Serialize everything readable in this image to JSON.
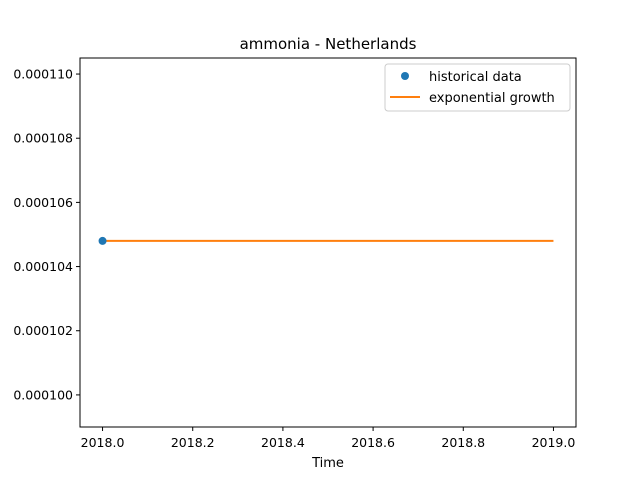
{
  "chart_data": {
    "type": "line",
    "title": "ammonia - Netherlands",
    "xlabel": "Time",
    "ylabel": "",
    "xlim": [
      2017.95,
      2019.05
    ],
    "ylim": [
      9.9e-05,
      0.0001105
    ],
    "x_ticks": [
      2018.0,
      2018.2,
      2018.4,
      2018.6,
      2018.8,
      2019.0
    ],
    "x_tick_labels": [
      "2018.0",
      "2018.2",
      "2018.4",
      "2018.6",
      "2018.8",
      "2019.0"
    ],
    "y_ticks": [
      0.0001,
      0.000102,
      0.000104,
      0.000106,
      0.000108,
      0.00011
    ],
    "y_tick_labels": [
      "0.000100",
      "0.000102",
      "0.000104",
      "0.000106",
      "0.000108",
      "0.000110"
    ],
    "grid": false,
    "legend_position": "top-right",
    "series": [
      {
        "name": "historical data",
        "type": "scatter",
        "color": "#1f77b4",
        "x": [
          2018.0
        ],
        "y": [
          0.0001048
        ]
      },
      {
        "name": "exponential growth",
        "type": "line",
        "color": "#ff7f0e",
        "x": [
          2018.0,
          2019.0
        ],
        "y": [
          0.0001048,
          0.0001048
        ]
      }
    ]
  }
}
